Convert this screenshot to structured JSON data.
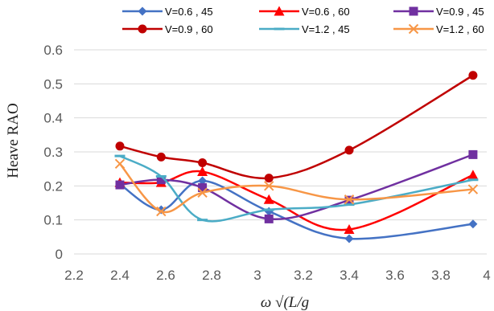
{
  "chart_data": {
    "type": "line",
    "title": "",
    "xlabel": "ω √(L/g",
    "ylabel": "Heave RAO",
    "xlim": [
      2.2,
      4
    ],
    "ylim": [
      0,
      0.6
    ],
    "x_ticks": [
      "2.2",
      "2.4",
      "2.6",
      "2.8",
      "3",
      "3.2",
      "3.4",
      "3.6",
      "3.8",
      "4"
    ],
    "y_ticks": [
      "0",
      "0.1",
      "0.2",
      "0.3",
      "0.4",
      "0.5",
      "0.6"
    ],
    "grid": "horizontal",
    "legend_position": "top",
    "x": [
      2.4,
      2.58,
      2.76,
      3.05,
      3.4,
      3.94
    ],
    "series": [
      {
        "name": "V=0.6 , 45",
        "color": "#4472C4",
        "marker": "diamond",
        "values": [
          0.205,
          0.13,
          0.215,
          0.125,
          0.045,
          0.088
        ]
      },
      {
        "name": "V=0.6 , 60",
        "color": "#FF0000",
        "marker": "triangle",
        "values": [
          0.21,
          0.21,
          0.242,
          0.16,
          0.072,
          0.232
        ]
      },
      {
        "name": "V=0.9 , 45",
        "color": "#7030A0",
        "marker": "square",
        "values": [
          0.203,
          0.218,
          0.195,
          0.103,
          0.158,
          0.292
        ]
      },
      {
        "name": "V=0.9 , 60",
        "color": "#C00000",
        "marker": "circle",
        "values": [
          0.317,
          0.285,
          0.268,
          0.223,
          0.305,
          0.525
        ]
      },
      {
        "name": "V=1.2 , 45",
        "color": "#4BACC6",
        "marker": "dash",
        "values": [
          0.288,
          0.228,
          0.1,
          0.13,
          0.145,
          0.218
        ]
      },
      {
        "name": "V=1.2 , 60",
        "color": "#F79646",
        "marker": "x",
        "values": [
          0.265,
          0.125,
          0.18,
          0.2,
          0.16,
          0.19
        ]
      }
    ]
  }
}
